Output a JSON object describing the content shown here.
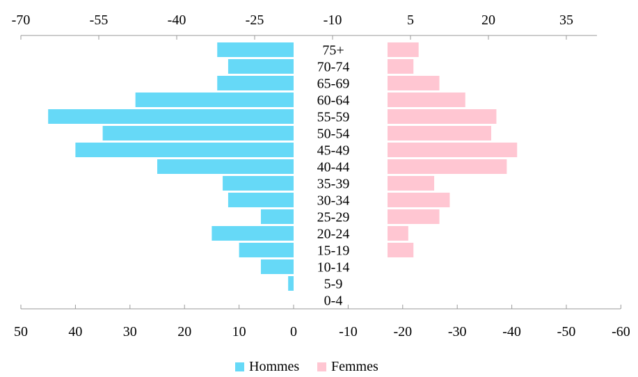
{
  "chart_data": {
    "type": "bar",
    "orientation": "horizontal",
    "subtype": "population-pyramid",
    "categories": [
      "75+",
      "70-74",
      "65-69",
      "60-64",
      "55-59",
      "50-54",
      "45-49",
      "40-44",
      "35-39",
      "30-34",
      "25-29",
      "20-24",
      "15-19",
      "10-14",
      "5-9",
      "0-4"
    ],
    "series": [
      {
        "name": "Hommes",
        "color": "#66d9f7",
        "values": [
          14,
          12,
          14,
          29,
          45,
          35,
          40,
          25,
          13,
          12,
          6,
          15,
          10,
          6,
          1,
          0
        ]
      },
      {
        "name": "Femmes",
        "color": "#ffc6d2",
        "values": [
          6,
          5,
          10,
          15,
          21,
          20,
          25,
          23,
          9,
          12,
          10,
          4,
          5,
          0,
          0,
          0
        ]
      }
    ],
    "top_axis": {
      "ticks": [
        "-70",
        "-55",
        "-40",
        "-25",
        "-10",
        "5",
        "20",
        "35"
      ],
      "tick_values": [
        -70,
        -55,
        -40,
        -25,
        -10,
        5,
        20,
        35
      ]
    },
    "bottom_axis": {
      "ticks": [
        "50",
        "40",
        "30",
        "20",
        "10",
        "0",
        "-10",
        "-20",
        "-30",
        "-40",
        "-50",
        "-60"
      ],
      "tick_values": [
        50,
        40,
        30,
        20,
        10,
        0,
        -10,
        -20,
        -30,
        -40,
        -50,
        -60
      ]
    },
    "legend": {
      "position": "bottom",
      "entries": [
        "Hommes",
        "Femmes"
      ]
    },
    "grid": false,
    "title": "",
    "xlabel": "",
    "ylabel": ""
  }
}
